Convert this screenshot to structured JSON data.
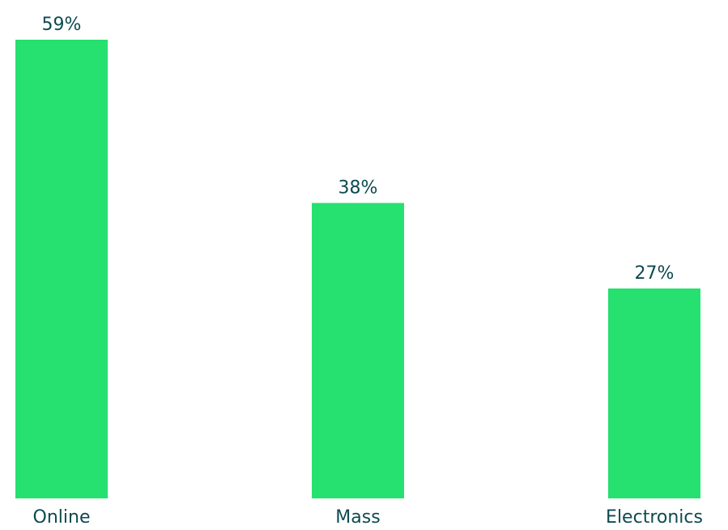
{
  "chart_data": {
    "type": "bar",
    "categories": [
      "Online",
      "Mass",
      "Electronics"
    ],
    "values": [
      59,
      38,
      27
    ],
    "value_labels": [
      "59%",
      "38%",
      "27%"
    ],
    "title": "",
    "xlabel": "",
    "ylabel": "",
    "ylim": [
      0,
      59
    ],
    "grid": false,
    "legend": "none",
    "colors": {
      "bar": "#26E070",
      "text": "#0D4A50",
      "background": "#FFFFFF"
    }
  }
}
